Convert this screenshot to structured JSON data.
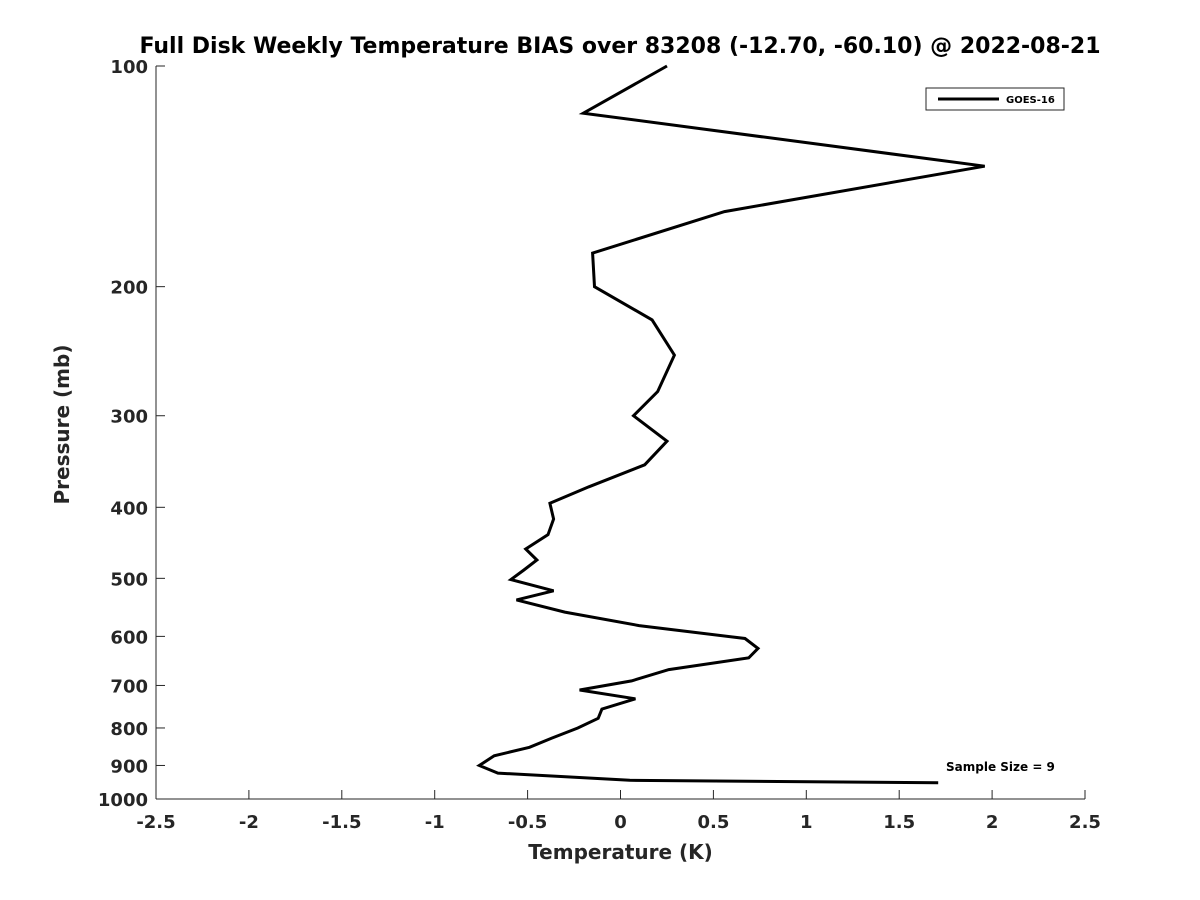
{
  "chart_data": {
    "type": "line",
    "title": "Full Disk Weekly Temperature BIAS over 83208 (-12.70, -60.10) @ 2022-08-21",
    "xlabel": "Temperature (K)",
    "ylabel": "Pressure (mb)",
    "xlim": [
      -2.5,
      2.5
    ],
    "ylim": [
      100,
      1000
    ],
    "y_scale": "log",
    "y_reversed": true,
    "x_ticks": [
      -2.5,
      -2,
      -1.5,
      -1,
      -0.5,
      0,
      0.5,
      1,
      1.5,
      2,
      2.5
    ],
    "x_tick_labels": [
      "-2.5",
      "-2",
      "-1.5",
      "-1",
      "-0.5",
      "0",
      "0.5",
      "1",
      "1.5",
      "2",
      "2.5"
    ],
    "y_ticks": [
      100,
      200,
      300,
      400,
      500,
      600,
      700,
      800,
      900,
      1000
    ],
    "y_tick_labels": [
      "100",
      "200",
      "300",
      "400",
      "500",
      "600",
      "700",
      "800",
      "900",
      "1000"
    ],
    "grid": false,
    "legend_position": "top-right",
    "line_color": "#000000",
    "series": [
      {
        "name": "GOES-16",
        "x": [
          0.25,
          -0.2,
          1.96,
          0.56,
          -0.15,
          -0.14,
          0.17,
          0.29,
          0.2,
          0.07,
          0.25,
          0.13,
          -0.17,
          -0.38,
          -0.36,
          -0.39,
          -0.51,
          -0.45,
          -0.52,
          -0.59,
          -0.36,
          -0.56,
          -0.3,
          0.1,
          0.67,
          0.74,
          0.69,
          0.26,
          0.06,
          -0.22,
          0.08,
          -0.1,
          -0.12,
          -0.23,
          -0.37,
          -0.49,
          -0.68,
          -0.76,
          -0.66,
          0.05,
          1.71
        ],
        "y": [
          100,
          116,
          137,
          158,
          180,
          200,
          222,
          248,
          278,
          300,
          325,
          350,
          375,
          395,
          415,
          436,
          456,
          472,
          487,
          502,
          520,
          535,
          556,
          580,
          604,
          623,
          642,
          666,
          690,
          710,
          730,
          754,
          776,
          800,
          826,
          850,
          873,
          900,
          922,
          943,
          950
        ]
      }
    ],
    "annotation": "Sample Size = 9"
  }
}
